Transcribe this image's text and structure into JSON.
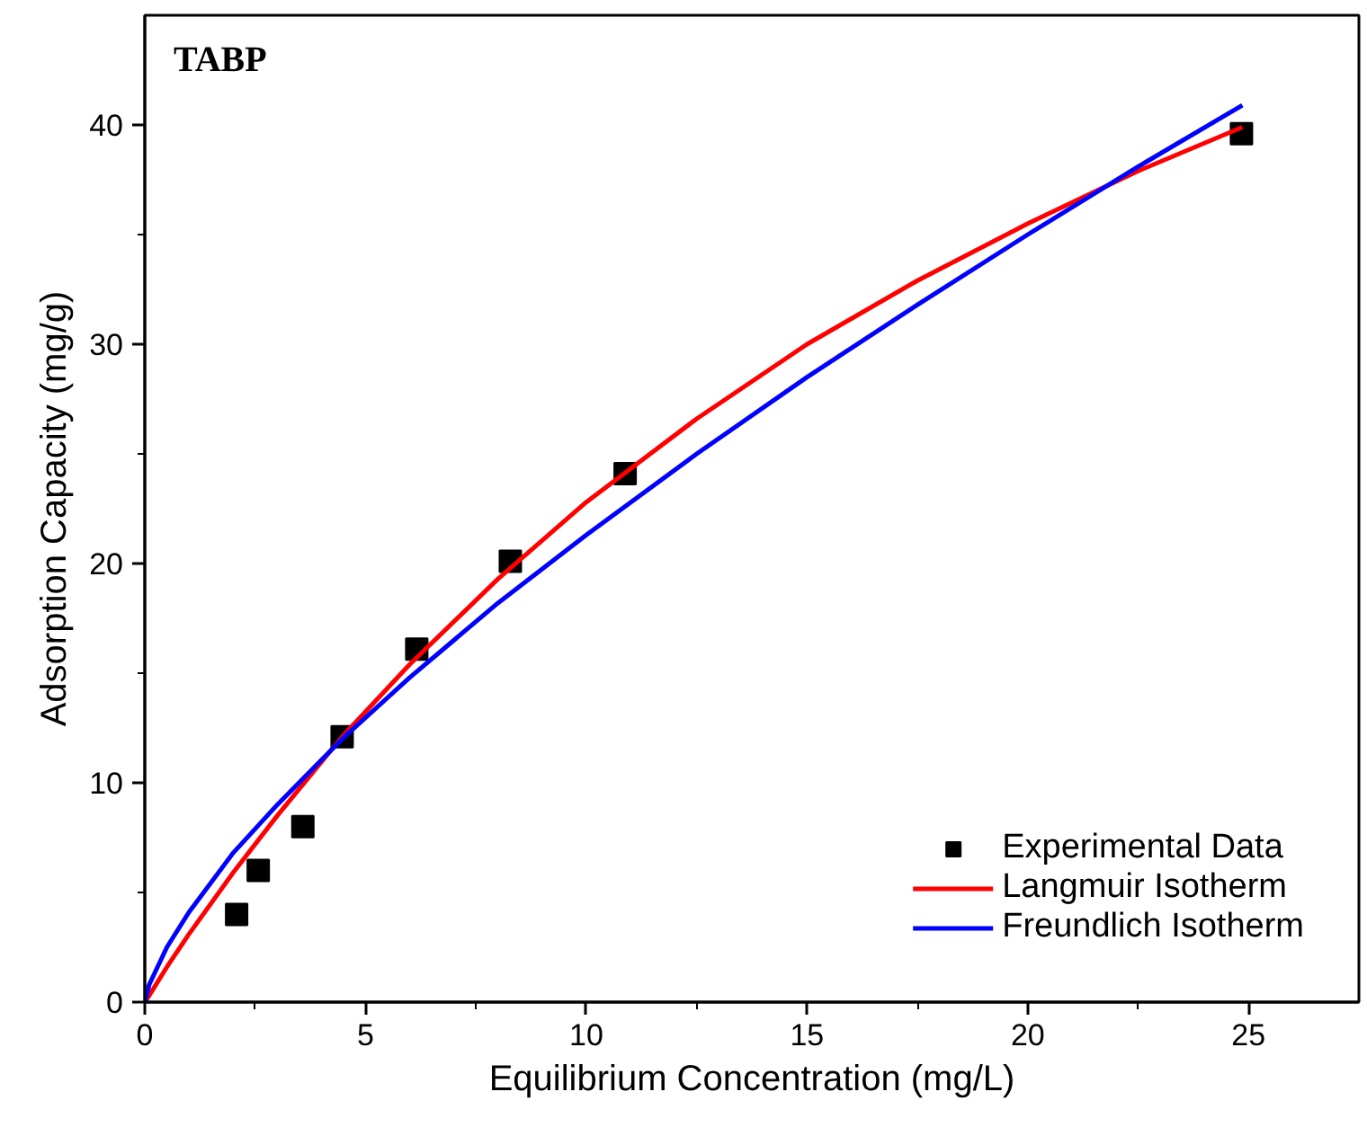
{
  "chart_data": {
    "type": "scatter",
    "title": "TABP",
    "xlabel": "Equilibrium Concentration (mg/L)",
    "ylabel": "Adsorption Capacity (mg/g)",
    "xlim": [
      0,
      27.5
    ],
    "ylim": [
      0,
      45
    ],
    "xticks": [
      0,
      {
        "value": 2.5,
        "label": null
      },
      5,
      {
        "value": 7.5,
        "label": null
      },
      10,
      {
        "value": 12.5,
        "label": null
      },
      15,
      {
        "value": 17.5,
        "label": null
      },
      20,
      {
        "value": 22.5,
        "label": null
      },
      25
    ],
    "yticks": [
      0,
      {
        "value": 5,
        "label": null
      },
      10,
      {
        "value": 15,
        "label": null
      },
      20,
      {
        "value": 25,
        "label": null
      },
      30,
      {
        "value": 35,
        "label": null
      },
      40
    ],
    "grid": false,
    "legend": "bottom right",
    "series": [
      {
        "name": "Experimental Data",
        "marker": "square",
        "color": "#000000",
        "x": [
          2.08,
          2.57,
          3.58,
          4.47,
          6.16,
          8.28,
          10.88,
          24.84
        ],
        "values": [
          4.0,
          6.0,
          8.0,
          12.1,
          16.1,
          20.1,
          24.1,
          39.6
        ]
      },
      {
        "name": "Langmuir Isotherm",
        "type": "line",
        "line_style": "solid",
        "color": "#ff0000",
        "x": [
          0,
          0.1,
          0.5,
          1,
          2,
          3,
          4.47,
          6,
          8,
          10,
          12.5,
          15,
          17.5,
          20,
          22.5,
          24.86
        ],
        "values": [
          0,
          0.3,
          1.6,
          3.1,
          5.9,
          8.5,
          12.1,
          15.4,
          19.3,
          22.8,
          26.6,
          30.0,
          32.9,
          35.5,
          37.9,
          39.9
        ]
      },
      {
        "name": "Freundlich Isotherm",
        "type": "line",
        "line_style": "solid",
        "color": "#0000ff",
        "x": [
          0,
          0.1,
          0.5,
          1,
          2,
          3,
          4.47,
          6,
          8,
          10,
          12.5,
          15,
          17.5,
          20,
          22.5,
          24.86
        ],
        "values": [
          0,
          0.8,
          2.5,
          4.1,
          6.8,
          9.0,
          12.0,
          14.8,
          18.2,
          21.3,
          25.0,
          28.5,
          31.8,
          35.0,
          38.1,
          40.9
        ]
      }
    ]
  }
}
